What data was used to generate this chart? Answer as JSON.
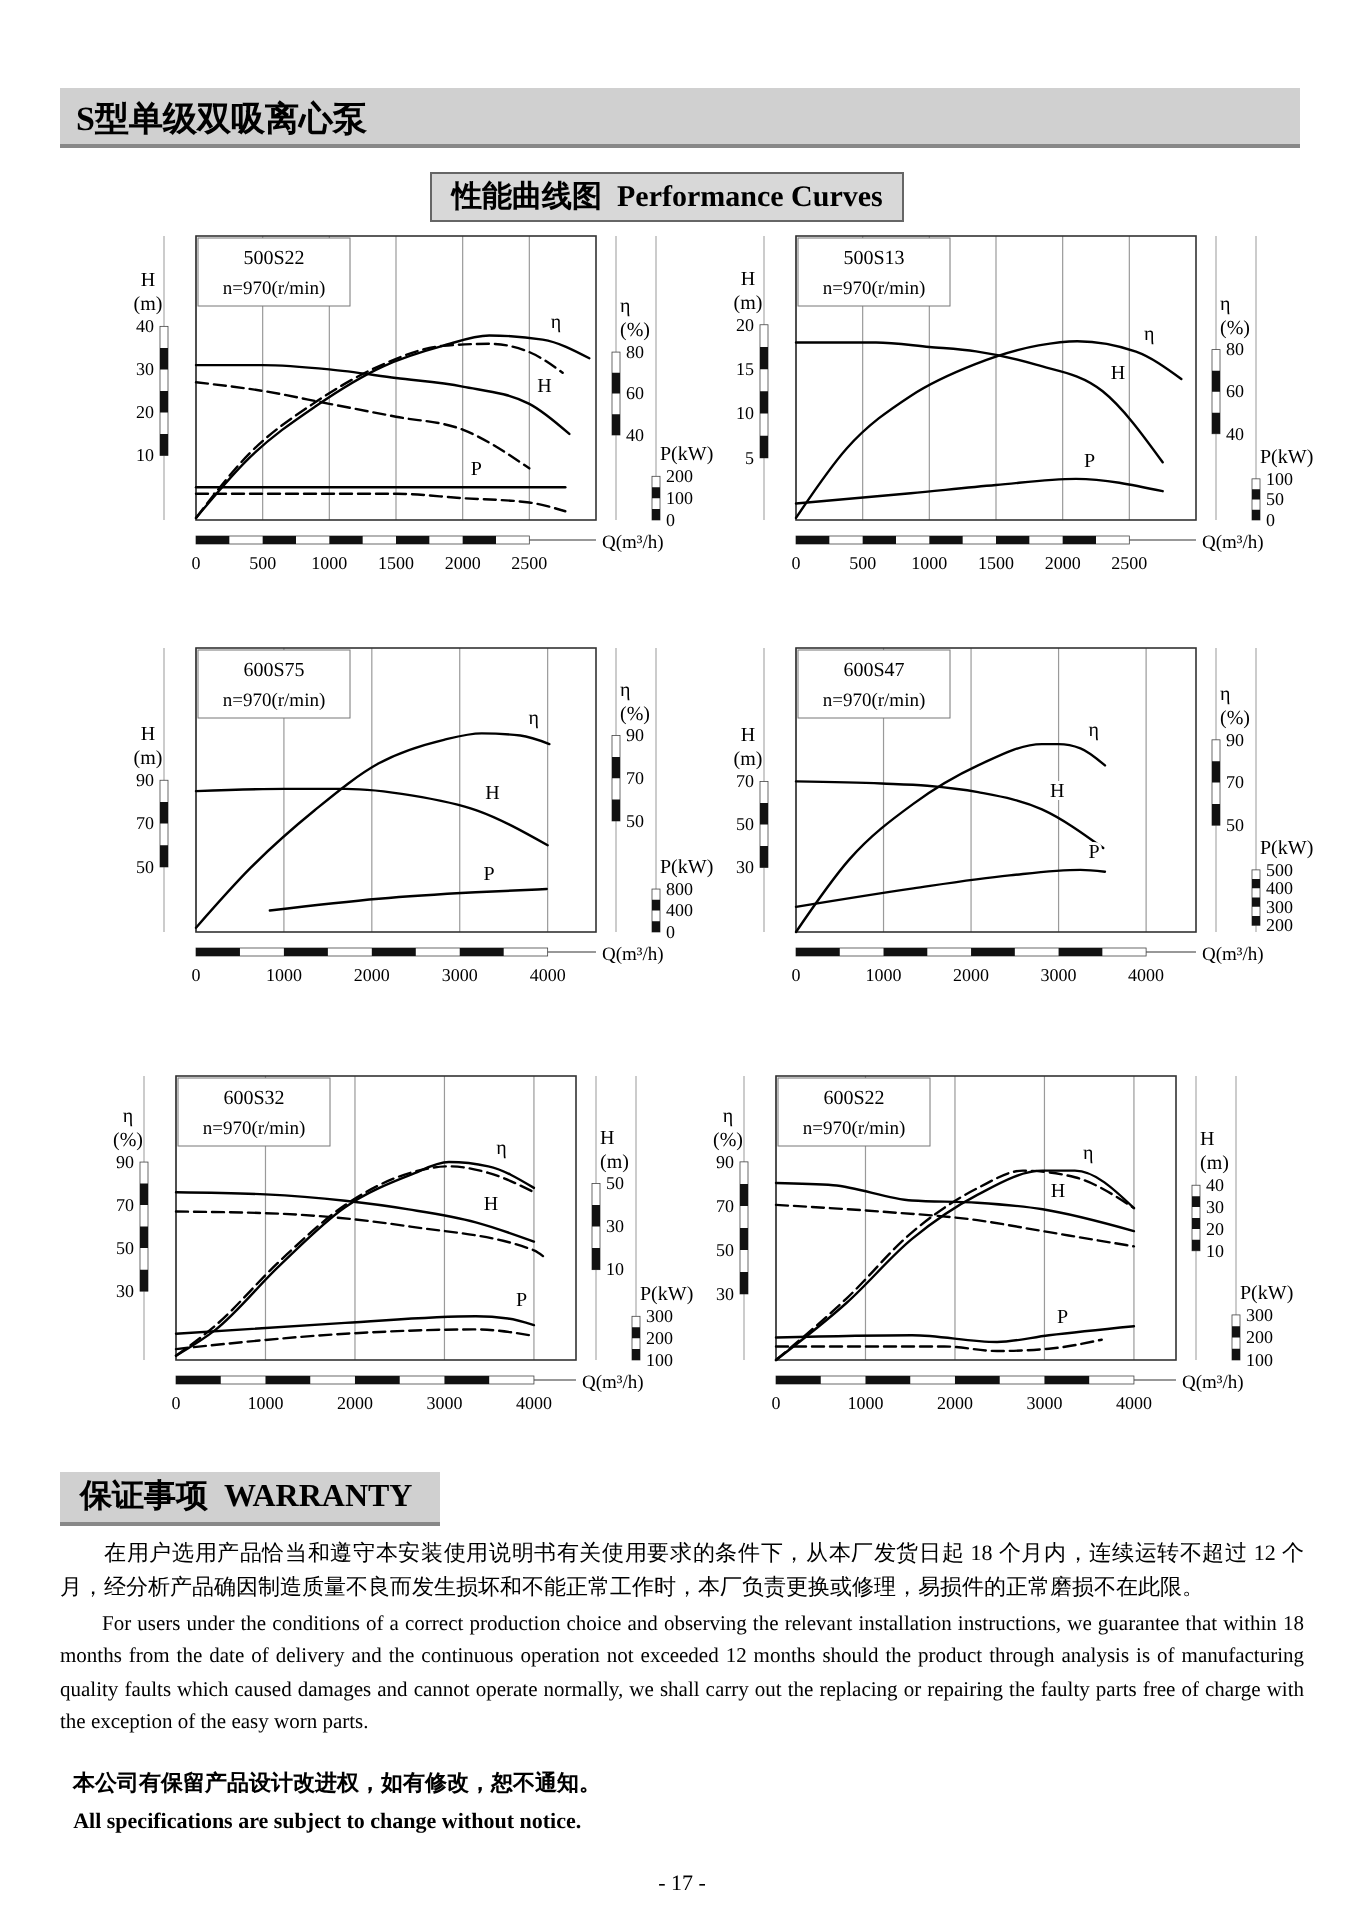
{
  "chart_data": [
    {
      "type": "other",
      "title": "S型单级双吸离心泵",
      "subtitle": "性能曲线图  Performance Curves"
    },
    {
      "type": "line",
      "title": "500S22",
      "subtitle": "n=970(r/min)",
      "xlabel": "Q(m³/h)",
      "ylabel": "H\n(m)",
      "y2label": "η\n(%)",
      "y3label": "P(kW)",
      "xlim": [
        0,
        3000
      ],
      "xticks": [
        0,
        500,
        1000,
        1500,
        2000,
        2500
      ],
      "ylim": [
        -5,
        61
      ],
      "yticks": [
        10,
        20,
        30,
        40
      ],
      "y2lim": [
        -1,
        136
      ],
      "y2ticks": [
        40,
        60,
        80
      ],
      "y3lim": [
        0,
        1300
      ],
      "y3ticks": [
        0,
        100,
        200
      ],
      "grid": "x",
      "legend": false,
      "series": [
        {
          "name": "H",
          "color": "#000000",
          "axis": "y",
          "line_style": "solid",
          "x": [
            0,
            500,
            1000,
            1500,
            2000,
            2500,
            2800
          ],
          "values": [
            31,
            31,
            30,
            28,
            26,
            22,
            15
          ]
        },
        {
          "color": "#000000",
          "axis": "y",
          "line_style": "dashed",
          "x": [
            0,
            500,
            1000,
            1500,
            2000,
            2500
          ],
          "values": [
            27,
            25,
            22,
            19,
            16,
            7
          ]
        },
        {
          "name": "η",
          "color": "#000000",
          "axis": "y2",
          "line_style": "solid",
          "x": [
            0,
            400,
            900,
            1400,
            1850,
            2200,
            2600,
            2950
          ],
          "values": [
            0,
            29,
            54,
            73,
            83,
            88,
            86,
            77
          ]
        },
        {
          "color": "#000000",
          "axis": "y2",
          "line_style": "dashed",
          "x": [
            0,
            400,
            900,
            1400,
            1850,
            2200,
            2500,
            2750
          ],
          "values": [
            0,
            31,
            56,
            74,
            83,
            84,
            80,
            70
          ]
        },
        {
          "name": "P",
          "color": "#000000",
          "axis": "y3",
          "line_style": "solid",
          "x": [
            0,
            1000,
            2000,
            2770
          ],
          "values": [
            150,
            150,
            150,
            150
          ]
        },
        {
          "color": "#000000",
          "axis": "y3",
          "line_style": "dashed",
          "x": [
            0,
            1500,
            2000,
            2500,
            2770
          ],
          "values": [
            120,
            120,
            100,
            80,
            40
          ]
        }
      ]
    },
    {
      "type": "line",
      "title": "500S13",
      "subtitle": "n=970(r/min)",
      "xlabel": "Q(m³/h)",
      "ylabel": "H\n(m)",
      "y2label": "η\n(%)",
      "y3label": "P(kW)",
      "xlim": [
        0,
        3000
      ],
      "xticks": [
        0,
        500,
        1000,
        1500,
        2000,
        2500
      ],
      "ylim": [
        -2,
        30
      ],
      "yticks": [
        5,
        10,
        15,
        20
      ],
      "y2lim": [
        -1,
        134
      ],
      "y2ticks": [
        40,
        60,
        80
      ],
      "y3lim": [
        0,
        690
      ],
      "y3ticks": [
        0,
        50,
        100
      ],
      "grid": "x",
      "legend": false,
      "series": [
        {
          "name": "H",
          "color": "#000000",
          "axis": "y",
          "line_style": "solid",
          "x": [
            0,
            600,
            1000,
            1350,
            1800,
            2300,
            2750
          ],
          "values": [
            18,
            18,
            17.5,
            17,
            15.5,
            12.5,
            4.5
          ]
        },
        {
          "name": "η",
          "color": "#000000",
          "axis": "y2",
          "line_style": "solid",
          "x": [
            0,
            380,
            860,
            1340,
            1820,
            2110,
            2550,
            2890
          ],
          "values": [
            0,
            33,
            58,
            73,
            82,
            84,
            79,
            66
          ]
        },
        {
          "name": "P",
          "color": "#000000",
          "axis": "y3",
          "line_style": "solid",
          "x": [
            0,
            860,
            1500,
            2100,
            2750
          ],
          "values": [
            40,
            65,
            85,
            100,
            70
          ]
        }
      ]
    },
    {
      "type": "line",
      "title": "600S75",
      "subtitle": "n=970(r/min)",
      "xlabel": "Q(m³/h)",
      "ylabel": "H\n(m)",
      "y2label": "η\n(%)",
      "y3label": "P(kW)",
      "xlim": [
        0,
        4550
      ],
      "xticks": [
        0,
        1000,
        2000,
        3000,
        4000
      ],
      "ylim": [
        20,
        151
      ],
      "yticks": [
        50,
        70,
        90
      ],
      "y2lim": [
        -2,
        131
      ],
      "y2ticks": [
        50,
        70,
        90
      ],
      "y3lim": [
        0,
        5290
      ],
      "y3ticks": [
        0,
        400,
        800
      ],
      "grid": "x",
      "legend": false,
      "series": [
        {
          "name": "H",
          "color": "#000000",
          "axis": "y",
          "line_style": "solid",
          "x": [
            0,
            1000,
            1700,
            2450,
            3200,
            4000
          ],
          "values": [
            85,
            86,
            86,
            83,
            76,
            60
          ]
        },
        {
          "name": "η",
          "color": "#000000",
          "axis": "y2",
          "line_style": "solid",
          "x": [
            0,
            620,
            1350,
            2080,
            2820,
            3250,
            3690,
            4020
          ],
          "values": [
            0,
            28,
            55,
            77,
            88,
            91,
            90,
            86
          ]
        },
        {
          "name": "P",
          "color": "#000000",
          "axis": "y3",
          "line_style": "solid",
          "x": [
            840,
            2080,
            3180,
            3990
          ],
          "values": [
            400,
            620,
            740,
            800
          ]
        }
      ]
    },
    {
      "type": "line",
      "title": "600S47",
      "subtitle": "n=970(r/min)",
      "xlabel": "Q(m³/h)",
      "ylabel": "H\n(m)",
      "y2label": "η\n(%)",
      "y3label": "P(kW)",
      "xlim": [
        0,
        4570
      ],
      "xticks": [
        0,
        1000,
        2000,
        3000,
        4000
      ],
      "ylim": [
        0,
        132
      ],
      "yticks": [
        30,
        50,
        70
      ],
      "y2lim": [
        0,
        133
      ],
      "y2ticks": [
        50,
        70,
        90
      ],
      "y3lim": [
        164,
        1700
      ],
      "y3ticks": [
        200,
        300,
        400,
        500
      ],
      "grid": "x",
      "legend": false,
      "series": [
        {
          "name": "H",
          "color": "#000000",
          "axis": "y",
          "line_style": "solid",
          "x": [
            0,
            980,
            1500,
            2080,
            2810,
            3510
          ],
          "values": [
            70,
            69,
            68,
            65,
            57,
            39
          ]
        },
        {
          "name": "η",
          "color": "#000000",
          "axis": "y2",
          "line_style": "solid",
          "x": [
            0,
            610,
            1340,
            2080,
            2810,
            3000,
            3250,
            3530
          ],
          "values": [
            0,
            34,
            60,
            78,
            88,
            88,
            86,
            78
          ]
        },
        {
          "name": "P",
          "color": "#000000",
          "axis": "y3",
          "line_style": "solid",
          "x": [
            0,
            1340,
            2440,
            3250,
            3530
          ],
          "values": [
            300,
            400,
            470,
            500,
            490
          ]
        }
      ]
    },
    {
      "type": "line",
      "title": "600S32",
      "subtitle": "n=970(r/min)",
      "xlabel": "Q(m³/h)",
      "ylabel": "η\n(%)",
      "y2label": "H\n(m)",
      "y3label": "P(kW)",
      "xlim": [
        0,
        4470
      ],
      "xticks": [
        0,
        1000,
        2000,
        3000,
        4000
      ],
      "ylim": [
        -2,
        130
      ],
      "yticks": [
        30,
        50,
        70,
        90
      ],
      "y2lim": [
        -32,
        100
      ],
      "y2ticks": [
        10,
        30,
        50
      ],
      "y3lim": [
        100,
        1400
      ],
      "y3ticks": [
        100,
        200,
        300
      ],
      "grid": "x",
      "legend": false,
      "series": [
        {
          "name": "η",
          "color": "#000000",
          "axis": "y",
          "line_style": "solid",
          "x": [
            0,
            440,
            1160,
            1890,
            2620,
            3050,
            3490,
            4000
          ],
          "values": [
            0,
            12,
            42,
            69,
            84,
            90,
            88,
            78
          ]
        },
        {
          "color": "#000000",
          "axis": "y",
          "line_style": "dashed",
          "x": [
            0,
            440,
            1160,
            1890,
            2620,
            3050,
            3490,
            4000
          ],
          "values": [
            0,
            14,
            44,
            70,
            85,
            88,
            85,
            76
          ]
        },
        {
          "name": "H",
          "color": "#000000",
          "axis": "y2",
          "line_style": "solid",
          "x": [
            0,
            1000,
            1890,
            2600,
            3350,
            4000
          ],
          "values": [
            46,
            45,
            42,
            38,
            32,
            23
          ]
        },
        {
          "color": "#000000",
          "axis": "y2",
          "line_style": "dashed",
          "x": [
            0,
            1160,
            2620,
            4000,
            4110
          ],
          "values": [
            37,
            36,
            30,
            19,
            16
          ]
        },
        {
          "name": "P",
          "color": "#000000",
          "axis": "y3",
          "line_style": "solid",
          "x": [
            0,
            1890,
            3350,
            3710,
            4000
          ],
          "values": [
            220,
            270,
            300,
            290,
            260
          ]
        },
        {
          "color": "#000000",
          "axis": "y3",
          "line_style": "dashed",
          "x": [
            0,
            1890,
            3350,
            4000
          ],
          "values": [
            150,
            220,
            240,
            210
          ]
        }
      ]
    },
    {
      "type": "line",
      "title": "600S22",
      "subtitle": "n=970(r/min)",
      "xlabel": "Q(m³/h)",
      "ylabel": "η\n(%)",
      "y2label": "H\n(m)",
      "y3label": "P(kW)",
      "xlim": [
        0,
        4470
      ],
      "xticks": [
        0,
        1000,
        2000,
        3000,
        4000
      ],
      "ylim": [
        0,
        129
      ],
      "yticks": [
        30,
        50,
        70,
        90
      ],
      "y2lim": [
        -40,
        90
      ],
      "y2ticks": [
        10,
        20,
        30,
        40
      ],
      "y3lim": [
        100,
        1360
      ],
      "y3ticks": [
        100,
        200,
        300
      ],
      "grid": "x",
      "legend": false,
      "series": [
        {
          "name": "η",
          "color": "#000000",
          "axis": "y",
          "line_style": "solid",
          "x": [
            0,
            790,
            1520,
            2250,
            2980,
            3340,
            4000
          ],
          "values": [
            0,
            26,
            55,
            75,
            86,
            86,
            69
          ]
        },
        {
          "color": "#000000",
          "axis": "y",
          "line_style": "dashed",
          "x": [
            0,
            790,
            1520,
            2250,
            2760,
            3340,
            4000
          ],
          "values": [
            0,
            28,
            58,
            78,
            86,
            83,
            69
          ]
        },
        {
          "name": "H",
          "color": "#000000",
          "axis": "y2",
          "line_style": "solid",
          "x": [
            0,
            640,
            1520,
            2250,
            2980,
            4000
          ],
          "values": [
            41,
            40,
            33,
            32,
            29,
            19
          ]
        },
        {
          "color": "#000000",
          "axis": "y2",
          "line_style": "dashed",
          "x": [
            0,
            1150,
            2250,
            2980,
            4000
          ],
          "values": [
            31,
            28,
            24,
            19,
            12
          ]
        },
        {
          "name": "P",
          "color": "#000000",
          "axis": "y3",
          "line_style": "solid",
          "x": [
            0,
            1520,
            2470,
            3050,
            4000
          ],
          "values": [
            200,
            210,
            180,
            210,
            250
          ]
        },
        {
          "color": "#000000",
          "axis": "y3",
          "line_style": "dashed",
          "x": [
            0,
            1880,
            2470,
            3050,
            3640
          ],
          "values": [
            160,
            160,
            140,
            150,
            190
          ]
        }
      ]
    },
    {
      "type": "other",
      "title": "保证事项  WARRANTY",
      "annotations": [
        "在用户选用产品恰当和遵守本安装使用说明书有关使用要求的条件下，从本厂发货日起 18 个月内，连续运转不超过 12 个月，经分析产品确因制造质量不良而发生损坏和不能正常工作时，本厂负责更换或修理，易损件的正常磨损不在此限。",
        "For users under the conditions of a correct production choice and observing the relevant installation instructions, we guarantee that within 18 months from the date of delivery and the continuous operation not exceeded 12 months should the product through analysis is of manufacturing quality faults which caused damages and cannot operate normally, we shall carry out the replacing or repairing the faulty parts free of charge with the exception of the easy worn parts.",
        "本公司有保留产品设计改进权，如有修改，恕不通知。",
        "All specifications are subject to change without notice.",
        "- 17 -"
      ]
    }
  ]
}
